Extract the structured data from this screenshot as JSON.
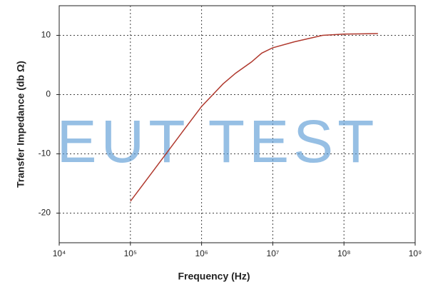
{
  "chart_data": {
    "type": "line",
    "watermark": "EUT TEST",
    "xlabel": "Frequency (Hz)",
    "ylabel": "Transfer Impedance (db Ω)",
    "log_x": true,
    "grid": true,
    "x": [
      100000,
      200000,
      500000,
      1000000,
      2000000,
      3000000,
      5000000,
      7000000,
      10000000,
      20000000,
      50000000,
      100000000,
      300000000
    ],
    "series": [
      {
        "color": "#b0392e",
        "values": [
          -18,
          -13.2,
          -6.8,
          -2,
          1.8,
          3.6,
          5.5,
          7,
          7.9,
          8.9,
          10,
          10.2,
          10.3
        ]
      }
    ],
    "xlim": [
      10000,
      1000000000
    ],
    "xticks": [
      {
        "value": 10000,
        "label": "10⁴"
      },
      {
        "value": 100000,
        "label": "10⁵"
      },
      {
        "value": 1000000,
        "label": "10⁶"
      },
      {
        "value": 10000000,
        "label": "10⁷"
      },
      {
        "value": 100000000,
        "label": "10⁸"
      },
      {
        "value": 1000000000,
        "label": "10⁹"
      }
    ],
    "ylim": [
      -25,
      15
    ],
    "yticks": [
      -20,
      -10,
      0,
      10
    ]
  }
}
